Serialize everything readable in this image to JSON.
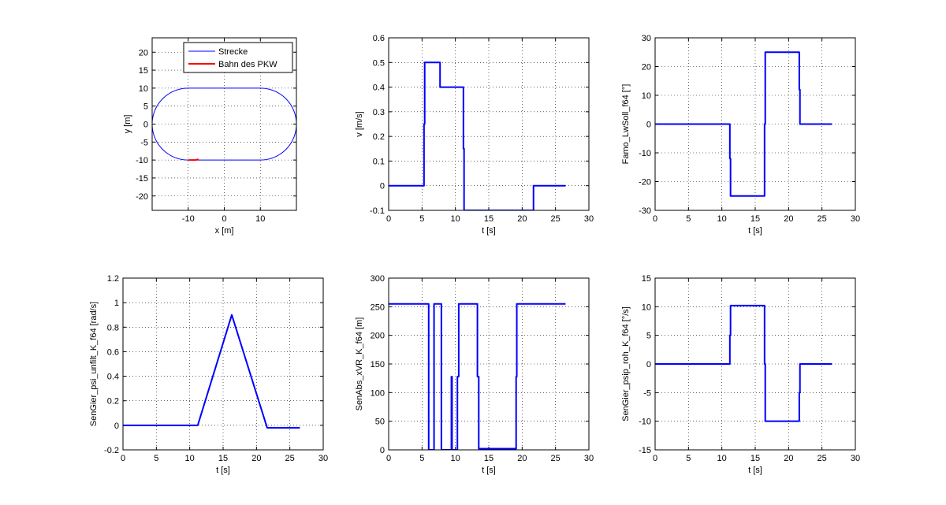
{
  "chart_data": [
    {
      "id": "track",
      "type": "line",
      "xlabel": "x [m]",
      "ylabel": "y [m]",
      "xlim": [
        -20,
        20
      ],
      "ylim": [
        -24,
        24
      ],
      "xticks": [
        -10,
        0,
        10
      ],
      "yticks": [
        -20,
        -15,
        -10,
        -5,
        0,
        5,
        10,
        15,
        20
      ],
      "grid": true,
      "legend": {
        "placement": "top-right",
        "entries": [
          "Strecke",
          "Bahn des PKW"
        ]
      },
      "series": [
        {
          "name": "Strecke",
          "color": "#0000ff",
          "shape": "stadium",
          "straight_x": [
            -10,
            10
          ],
          "radius": 10
        },
        {
          "name": "Bahn des PKW",
          "color": "#ff0000",
          "x": [
            -10,
            -9,
            -8,
            -7.5,
            -7.2
          ],
          "y": [
            -10,
            -10,
            -10,
            -9.9,
            -9.7
          ]
        }
      ]
    },
    {
      "id": "velocity",
      "type": "line",
      "xlabel": "t [s]",
      "ylabel": "v [m/s]",
      "xlim": [
        0,
        30
      ],
      "ylim": [
        -0.1,
        0.6
      ],
      "xticks": [
        0,
        5,
        10,
        15,
        20,
        25,
        30
      ],
      "yticks": [
        -0.1,
        0,
        0.1,
        0.2,
        0.3,
        0.4,
        0.5,
        0.6
      ],
      "grid": true,
      "series": [
        {
          "color": "#0000ff",
          "x": [
            0,
            5.3,
            5.3,
            5.4,
            5.4,
            7.7,
            7.7,
            11.2,
            11.2,
            11.3,
            11.3,
            21.7,
            21.7,
            26.5
          ],
          "y": [
            0,
            0,
            0.25,
            0.25,
            0.5,
            0.5,
            0.4,
            0.4,
            0.15,
            0.15,
            -0.1,
            -0.1,
            0,
            0
          ]
        }
      ]
    },
    {
      "id": "steer",
      "type": "line",
      "xlabel": "t [s]",
      "ylabel": "Famo_LwSoll_f64 [°]",
      "xlim": [
        0,
        30
      ],
      "ylim": [
        -30,
        30
      ],
      "xticks": [
        0,
        5,
        10,
        15,
        20,
        25,
        30
      ],
      "yticks": [
        -30,
        -20,
        -10,
        0,
        10,
        20,
        30
      ],
      "grid": true,
      "series": [
        {
          "color": "#0000ff",
          "x": [
            0,
            11.2,
            11.2,
            11.3,
            11.3,
            16.4,
            16.4,
            16.5,
            16.5,
            21.6,
            21.6,
            21.7,
            21.7,
            26.5
          ],
          "y": [
            0,
            0,
            -12,
            -12,
            -25,
            -25,
            0,
            0,
            25,
            25,
            12,
            12,
            0,
            0
          ]
        }
      ]
    },
    {
      "id": "psi",
      "type": "line",
      "xlabel": "t [s]",
      "ylabel": "SenGier_psi_unfilt_K_f64 [rad/s]",
      "xlim": [
        0,
        30
      ],
      "ylim": [
        -0.2,
        1.2
      ],
      "xticks": [
        0,
        5,
        10,
        15,
        20,
        25,
        30
      ],
      "yticks": [
        -0.2,
        0,
        0.2,
        0.4,
        0.6,
        0.8,
        1,
        1.2
      ],
      "grid": true,
      "series": [
        {
          "color": "#0000ff",
          "x": [
            0,
            11.2,
            16.3,
            21.6,
            26.5
          ],
          "y": [
            0,
            0,
            0.9,
            -0.02,
            -0.02
          ]
        }
      ]
    },
    {
      "id": "distance",
      "type": "line",
      "xlabel": "t [s]",
      "ylabel": "SenAbs_xVR_K_f64 [m]",
      "xlim": [
        0,
        30
      ],
      "ylim": [
        0,
        300
      ],
      "xticks": [
        0,
        5,
        10,
        15,
        20,
        25,
        30
      ],
      "yticks": [
        0,
        50,
        100,
        150,
        200,
        250,
        300
      ],
      "grid": true,
      "series": [
        {
          "color": "#0000ff",
          "x": [
            0,
            6,
            6,
            6.8,
            6.8,
            7.9,
            7.9,
            9.4,
            9.4,
            9.5,
            9.5,
            10.3,
            10.3,
            10.5,
            10.5,
            10.6,
            10.6,
            13.3,
            13.3,
            13.5,
            13.5,
            19.1,
            19.1,
            19.2,
            19.2,
            26.5
          ],
          "y": [
            255,
            255,
            0,
            0,
            255,
            255,
            0,
            0,
            128,
            128,
            0,
            0,
            128,
            128,
            255,
            255,
            255,
            255,
            128,
            128,
            2,
            2,
            128,
            128,
            255,
            255
          ]
        }
      ]
    },
    {
      "id": "psip",
      "type": "line",
      "xlabel": "t [s]",
      "ylabel": "SenGier_psip_roh_K_f64 [°/s]",
      "xlim": [
        0,
        30
      ],
      "ylim": [
        -15,
        15
      ],
      "xticks": [
        0,
        5,
        10,
        15,
        20,
        25,
        30
      ],
      "yticks": [
        -15,
        -10,
        -5,
        0,
        5,
        10,
        15
      ],
      "grid": true,
      "series": [
        {
          "color": "#0000ff",
          "x": [
            0,
            11.2,
            11.2,
            11.3,
            11.3,
            16.4,
            16.4,
            16.5,
            16.5,
            21.6,
            21.6,
            21.7,
            21.7,
            26.5
          ],
          "y": [
            0,
            0,
            5,
            5,
            10.2,
            10.2,
            0,
            0,
            -10,
            -10,
            -5,
            -5,
            0,
            0
          ]
        }
      ]
    }
  ]
}
